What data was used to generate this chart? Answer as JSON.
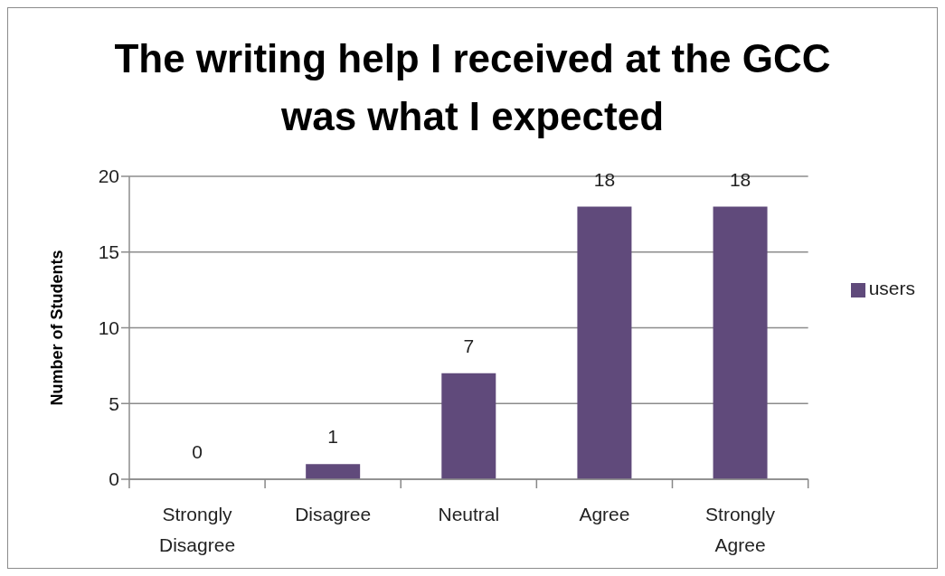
{
  "chart_data": {
    "type": "bar",
    "title": "The writing help I received at the GCC was what I expected",
    "ylabel": "Number of Students",
    "categories": [
      "Strongly Disagree",
      "Disagree",
      "Neutral",
      "Agree",
      "Strongly Agree"
    ],
    "series": [
      {
        "name": "users",
        "color": "#604a7b",
        "values": [
          0,
          1,
          7,
          18,
          18
        ]
      }
    ],
    "ylim": [
      0,
      20
    ],
    "yticks": [
      0,
      5,
      10,
      15,
      20
    ],
    "grid": "y",
    "legend": "right",
    "data_labels": true
  }
}
